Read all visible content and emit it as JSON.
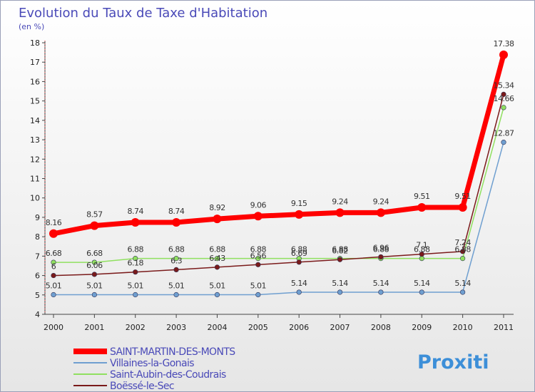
{
  "title": "Evolution du Taux de Taxe d'Habitation",
  "subtitle": "(en %)",
  "logo_text": "Proxiti",
  "chart_data": {
    "type": "line",
    "title": "Evolution du Taux de Taxe d'Habitation",
    "subtitle": "(en %)",
    "xlabel": "",
    "ylabel": "",
    "ylim": [
      4,
      18
    ],
    "yticks": [
      4,
      5,
      6,
      7,
      8,
      9,
      10,
      11,
      12,
      13,
      14,
      15,
      16,
      17,
      18
    ],
    "grid": false,
    "legend_position": "bottom-left",
    "x": [
      "2000",
      "2001",
      "2002",
      "2003",
      "2004",
      "2005",
      "2006",
      "2007",
      "2008",
      "2009",
      "2010",
      "2011"
    ],
    "series": [
      {
        "name": "SAINT-MARTIN-DES-MONTS",
        "color": "#ff0000",
        "values": [
          8.16,
          8.57,
          8.74,
          8.74,
          8.92,
          9.06,
          9.15,
          9.24,
          9.24,
          9.51,
          9.51,
          17.38
        ],
        "labels": [
          "8.16",
          "8.57",
          "8.74",
          "8.74",
          "8.92",
          "9.06",
          "9.15",
          "9.24",
          "9.24",
          "9.51",
          "9.51",
          "17.38"
        ]
      },
      {
        "name": "Villaines-la-Gonais",
        "color": "#6f9fd0",
        "values": [
          5.01,
          5.01,
          5.01,
          5.01,
          5.01,
          5.01,
          5.14,
          5.14,
          5.14,
          5.14,
          5.14,
          12.87
        ],
        "labels": [
          "5.01",
          "5.01",
          "5.01",
          "5.01",
          "5.01",
          "5.01",
          "5.14",
          "5.14",
          "5.14",
          "5.14",
          "5.14",
          "12.87"
        ]
      },
      {
        "name": "Saint-Aubin-des-Coudrais",
        "color": "#90e060",
        "values": [
          6.68,
          6.68,
          6.88,
          6.88,
          6.88,
          6.88,
          6.88,
          6.88,
          6.88,
          6.88,
          6.88,
          14.66
        ],
        "labels": [
          "6.68",
          "6.68",
          "6.88",
          "6.88",
          "6.88",
          "6.88",
          "6.88",
          "6.88",
          "6.88",
          "6.88",
          "6.88",
          "14.66"
        ]
      },
      {
        "name": "Boëssé-le-Sec",
        "color": "#7a1a1a",
        "values": [
          6,
          6.06,
          6.18,
          6.3,
          6.43,
          6.56,
          6.69,
          6.82,
          6.96,
          7.1,
          7.24,
          15.34
        ],
        "labels": [
          "6",
          "6.06",
          "6.18",
          "6.3",
          "6.43",
          "6.56",
          "6.69",
          "6.82",
          "6.96",
          "7.1",
          "7.24",
          "15.34"
        ]
      }
    ]
  }
}
